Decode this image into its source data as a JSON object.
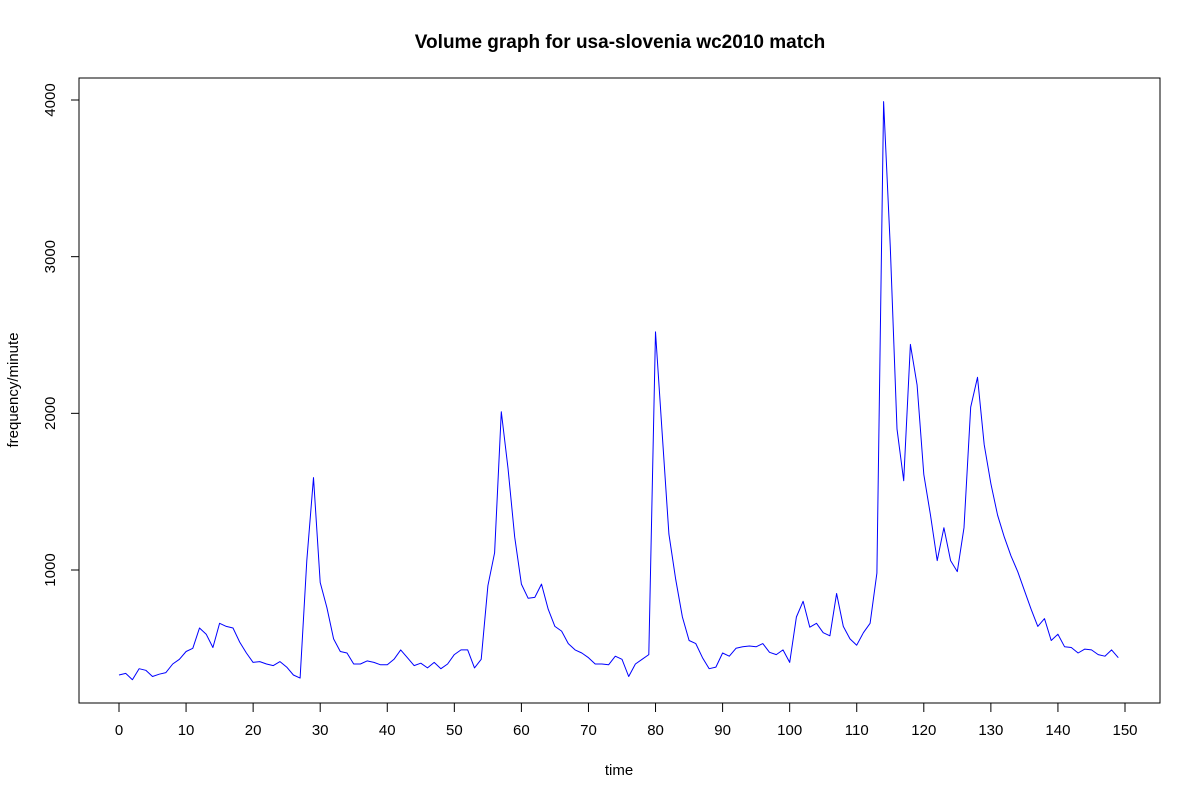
{
  "chart_data": {
    "type": "line",
    "title": "Volume graph for usa-slovenia wc2010 match",
    "xlabel": "time",
    "ylabel": "frequency/minute",
    "xlim": [
      0,
      150
    ],
    "ylim": [
      0,
      4000
    ],
    "x_ticks": [
      0,
      10,
      20,
      30,
      40,
      50,
      60,
      70,
      80,
      90,
      100,
      110,
      120,
      130,
      140,
      150
    ],
    "y_ticks": [
      1000,
      2000,
      3000,
      4000
    ],
    "grid": false,
    "legend": "none",
    "series": [
      {
        "color": "#0000ff",
        "x": [
          0,
          1,
          2,
          3,
          4,
          5,
          6,
          7,
          8,
          9,
          10,
          11,
          12,
          13,
          14,
          15,
          16,
          17,
          18,
          19,
          20,
          21,
          22,
          23,
          24,
          25,
          26,
          27,
          28,
          29,
          30,
          31,
          32,
          33,
          34,
          35,
          36,
          37,
          38,
          39,
          40,
          41,
          42,
          43,
          44,
          45,
          46,
          47,
          48,
          49,
          50,
          51,
          52,
          53,
          54,
          55,
          56,
          57,
          58,
          59,
          60,
          61,
          62,
          63,
          64,
          65,
          66,
          67,
          68,
          69,
          70,
          71,
          72,
          73,
          74,
          75,
          76,
          77,
          78,
          79,
          80,
          81,
          82,
          83,
          84,
          85,
          86,
          87,
          88,
          89,
          90,
          91,
          92,
          93,
          94,
          95,
          96,
          97,
          98,
          99,
          100,
          101,
          102,
          103,
          104,
          105,
          106,
          107,
          108,
          109,
          110,
          111,
          112,
          113,
          114,
          115,
          116,
          117,
          118,
          119,
          120,
          121,
          122,
          123,
          124,
          125,
          126,
          127,
          128,
          129,
          130,
          131,
          132,
          133,
          134,
          135,
          136,
          137,
          138,
          139,
          140,
          141,
          142,
          143,
          144,
          145,
          146,
          147,
          148,
          149
        ],
        "values": [
          330,
          340,
          300,
          370,
          360,
          320,
          335,
          345,
          400,
          430,
          480,
          500,
          630,
          590,
          505,
          660,
          640,
          630,
          540,
          470,
          410,
          415,
          400,
          390,
          415,
          380,
          330,
          310,
          1060,
          1590,
          920,
          760,
          560,
          480,
          470,
          400,
          400,
          420,
          410,
          395,
          395,
          430,
          490,
          440,
          390,
          405,
          375,
          410,
          370,
          400,
          460,
          490,
          490,
          375,
          430,
          900,
          1110,
          2010,
          1650,
          1210,
          910,
          820,
          825,
          910,
          750,
          640,
          610,
          530,
          490,
          470,
          440,
          400,
          400,
          395,
          450,
          430,
          320,
          400,
          430,
          460,
          2520,
          1870,
          1230,
          940,
          700,
          550,
          530,
          440,
          370,
          380,
          470,
          450,
          500,
          510,
          515,
          510,
          530,
          475,
          460,
          490,
          410,
          700,
          800,
          635,
          660,
          600,
          580,
          850,
          640,
          560,
          520,
          600,
          660,
          980,
          3990,
          3060,
          1900,
          1570,
          2440,
          2180,
          1610,
          1350,
          1060,
          1270,
          1060,
          990,
          1270,
          2040,
          2230,
          1800,
          1550,
          1350,
          1210,
          1090,
          990,
          870,
          750,
          640,
          690,
          550,
          590,
          510,
          505,
          470,
          495,
          490,
          460,
          450,
          490,
          440
        ]
      }
    ]
  }
}
